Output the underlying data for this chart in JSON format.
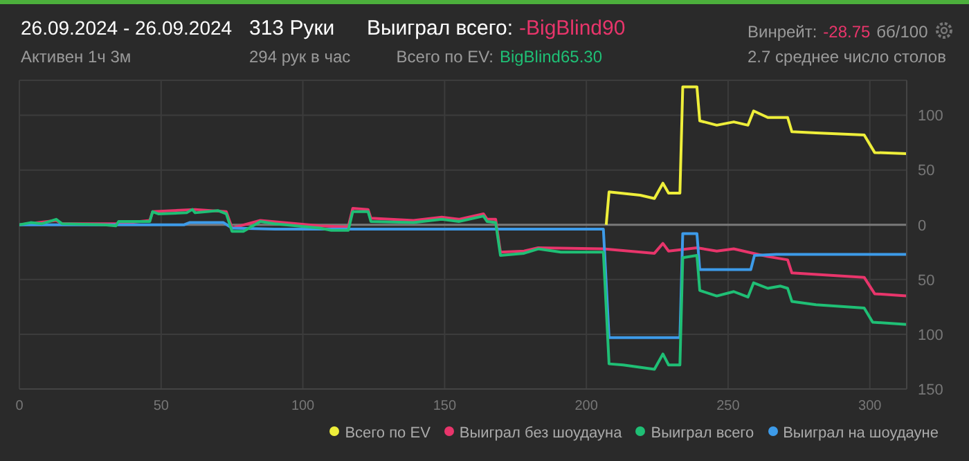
{
  "chart_data": {
    "type": "line",
    "title": "26.09.2024 - 26.09.2024",
    "annotations": [
      "Активен 1ч 3м",
      "313 Руки",
      "294 рук в час",
      "Выиграл всего:",
      "-BigBlind90",
      "Всего по EV:",
      "BigBlind65.30",
      "Винрейт:",
      "-28.75",
      "бб/100",
      "2.7 среднее число столов"
    ],
    "series": [
      {
        "name": "Выиграл всего",
        "color": "#1fbf75",
        "x": [
          0,
          4,
          8,
          13,
          15,
          30,
          34,
          35,
          46,
          47,
          49,
          59,
          61,
          62,
          70,
          73,
          75,
          79,
          85,
          90,
          106,
          110,
          116,
          117.6,
          123,
          124,
          139,
          149,
          155,
          163.7,
          165,
          168,
          169.7,
          178,
          183,
          191,
          206,
          208,
          213,
          224,
          227,
          229,
          233,
          234,
          239,
          240,
          246,
          252,
          257,
          259,
          264,
          268.5,
          271,
          272.5,
          281,
          298,
          301,
          313
        ],
        "values": [
          0,
          2,
          1,
          5,
          1,
          0,
          -1,
          3,
          3,
          12,
          10,
          11,
          14,
          11,
          13,
          10,
          -6,
          -6,
          3,
          1,
          -3,
          -5,
          -5,
          12,
          12,
          3,
          2,
          5,
          3,
          8,
          3,
          2,
          -28,
          -26,
          -22,
          -25,
          -25,
          -127,
          -128,
          -132,
          -118,
          -128,
          -128,
          -30,
          -28,
          -60,
          -65,
          -61,
          -66,
          -53,
          -58,
          -56,
          -58,
          -70,
          -73,
          -76,
          -89,
          -91
        ]
      },
      {
        "name": "Всего по EV",
        "color": "#eeee3a",
        "x": [
          207,
          208,
          219,
          224,
          227,
          229,
          233,
          234,
          239,
          240,
          246,
          252,
          257,
          259,
          264,
          271,
          272.5,
          281,
          298,
          301.7,
          313
        ],
        "values": [
          0,
          30,
          27,
          24,
          38,
          29,
          29,
          126,
          126,
          95,
          91,
          94,
          91,
          104,
          98,
          98,
          85,
          84,
          82,
          66,
          65
        ]
      },
      {
        "name": "Выиграл на шоудауне",
        "color": "#3d9be9",
        "x": [
          0,
          58,
          60,
          72,
          75,
          90,
          206,
          208,
          233,
          234,
          239,
          240,
          258,
          259.3,
          267,
          313
        ],
        "values": [
          0,
          0,
          2,
          2,
          -3,
          -4,
          -4,
          -103,
          -103,
          -8,
          -8,
          -41,
          -41,
          -28,
          -27,
          -27
        ]
      },
      {
        "name": "Выиграл без шоудауна",
        "color": "#e8356b",
        "x": [
          0,
          13,
          15,
          35,
          46,
          47,
          62,
          73,
          75,
          85,
          106,
          116,
          117.6,
          123,
          124,
          139,
          149,
          155,
          163.7,
          165,
          168,
          169.7,
          178,
          183,
          206,
          224,
          227,
          229,
          239,
          246,
          252,
          257,
          264,
          271,
          272.5,
          298,
          301.7,
          313
        ],
        "values": [
          0,
          4,
          1,
          1,
          4,
          12,
          14,
          12,
          -3,
          4,
          -1,
          -2,
          15,
          14,
          6,
          4,
          7,
          5,
          10,
          5,
          5,
          -25,
          -24,
          -21,
          -22,
          -26,
          -17,
          -24,
          -21,
          -24,
          -22,
          -25,
          -29,
          -32,
          -44,
          -48,
          -63,
          -65
        ]
      }
    ],
    "xlim": [
      0,
      313
    ],
    "xticks": [
      0,
      50,
      100,
      150,
      200,
      250,
      300
    ],
    "ylim": [
      -150,
      132
    ],
    "yticks": [
      {
        "value": -150,
        "label": "150"
      },
      {
        "value": -100,
        "label": "100"
      },
      {
        "value": -50,
        "label": "50"
      },
      0,
      50,
      100
    ],
    "ref_lines": [
      {
        "axis": "y",
        "value": 0,
        "color": "#7a7a7a"
      }
    ],
    "grid": true,
    "legend": "bottom right",
    "marker": "none",
    "line_style": "solid"
  }
}
